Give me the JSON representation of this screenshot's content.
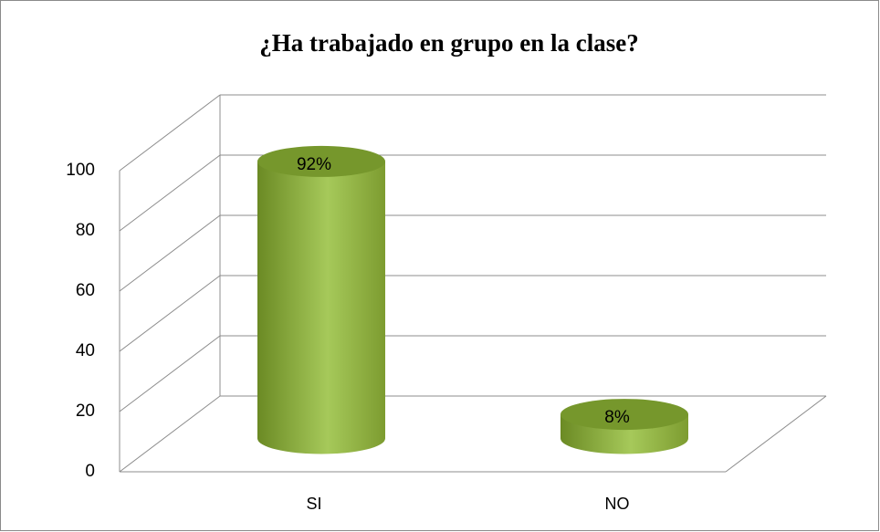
{
  "chart_data": {
    "type": "bar3d",
    "title": "¿Ha trabajado en grupo en la clase?",
    "categories": [
      "SI",
      "NO"
    ],
    "values": [
      92,
      8
    ],
    "value_labels": [
      "92%",
      "8%"
    ],
    "color": "#8fb43f",
    "ylim": [
      0,
      100
    ],
    "yticks": [
      0,
      20,
      40,
      60,
      80,
      100
    ],
    "grid": true
  }
}
